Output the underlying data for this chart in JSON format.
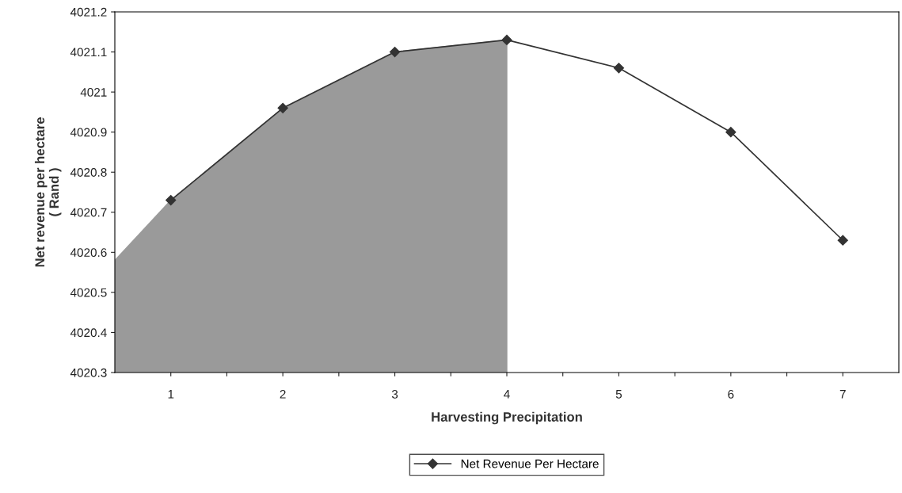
{
  "chart_data": {
    "type": "line",
    "xlabel": "Harvesting Precipitation",
    "ylabel": "Net revenue per hectare\n( Rand )",
    "xlim": [
      0.5,
      7.5
    ],
    "xticks": [
      1,
      {
        "value": 1.5,
        "label": null
      },
      2,
      {
        "value": 2.5,
        "label": null
      },
      3,
      {
        "value": 3.5,
        "label": null
      },
      4,
      {
        "value": 4.5,
        "label": null
      },
      5,
      {
        "value": 5.5,
        "label": null
      },
      6,
      {
        "value": 6.5,
        "label": null
      },
      7
    ],
    "ylim": [
      4020.3,
      4021.2
    ],
    "yticks": [
      4020.3,
      4020.4,
      4020.5,
      4020.6,
      4020.7,
      4020.8,
      4020.9,
      {
        "value": 4021,
        "label": "4021"
      },
      4021.1,
      4021.2
    ],
    "series": [
      {
        "type": "area",
        "color": "#9a9a9a",
        "x": [
          0.5,
          1,
          2,
          3,
          4
        ],
        "values": [
          4020.58,
          4020.73,
          4020.96,
          4021.1,
          4021.13
        ]
      },
      {
        "name": "Net Revenue Per Hectare",
        "color": "#333333",
        "marker": "diamond",
        "line_style": "solid",
        "x": [
          1,
          2,
          3,
          4,
          5,
          6,
          7
        ],
        "values": [
          4020.73,
          4020.96,
          4021.1,
          4021.13,
          4021.06,
          4020.9,
          4020.63
        ]
      }
    ],
    "grid": false,
    "legend": "bottom"
  }
}
